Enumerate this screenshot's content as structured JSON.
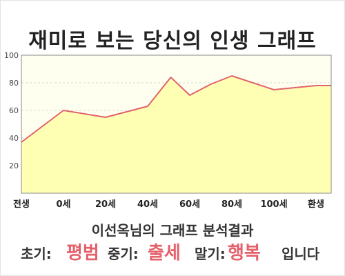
{
  "title": "재미로 보는 당신의 인생 그래프",
  "colors": {
    "line": "#e0626c",
    "fill": "#ffffb4",
    "plot_bg": "#fffff0",
    "highlight": "#e4606a"
  },
  "chart_data": {
    "type": "area",
    "title": "재미로 보는 당신의 인생 그래프",
    "xlabel": "",
    "ylabel": "",
    "x_tick_labels": [
      "전생",
      "0세",
      "20세",
      "40세",
      "60세",
      "80세",
      "100세",
      "환생"
    ],
    "y_ticks": [
      20,
      40,
      60,
      80,
      100
    ],
    "ylim": [
      0,
      100
    ],
    "grid": true,
    "legend": "none",
    "series": [
      {
        "x_positions_in_tick_units": [
          0,
          1,
          2,
          2.5,
          3,
          3.55,
          4,
          4.5,
          5,
          6,
          7
        ],
        "values": [
          37,
          60,
          55,
          59,
          63,
          84,
          71,
          79,
          85,
          75,
          78
        ]
      }
    ]
  },
  "caption": "이선옥님의 그래프 분석결과",
  "result": {
    "early_label": "초기:",
    "early_value": "평범",
    "middle_label": "중기:",
    "middle_value": "출세",
    "late_label": "말기:",
    "late_value": "행복",
    "suffix": "입니다"
  }
}
